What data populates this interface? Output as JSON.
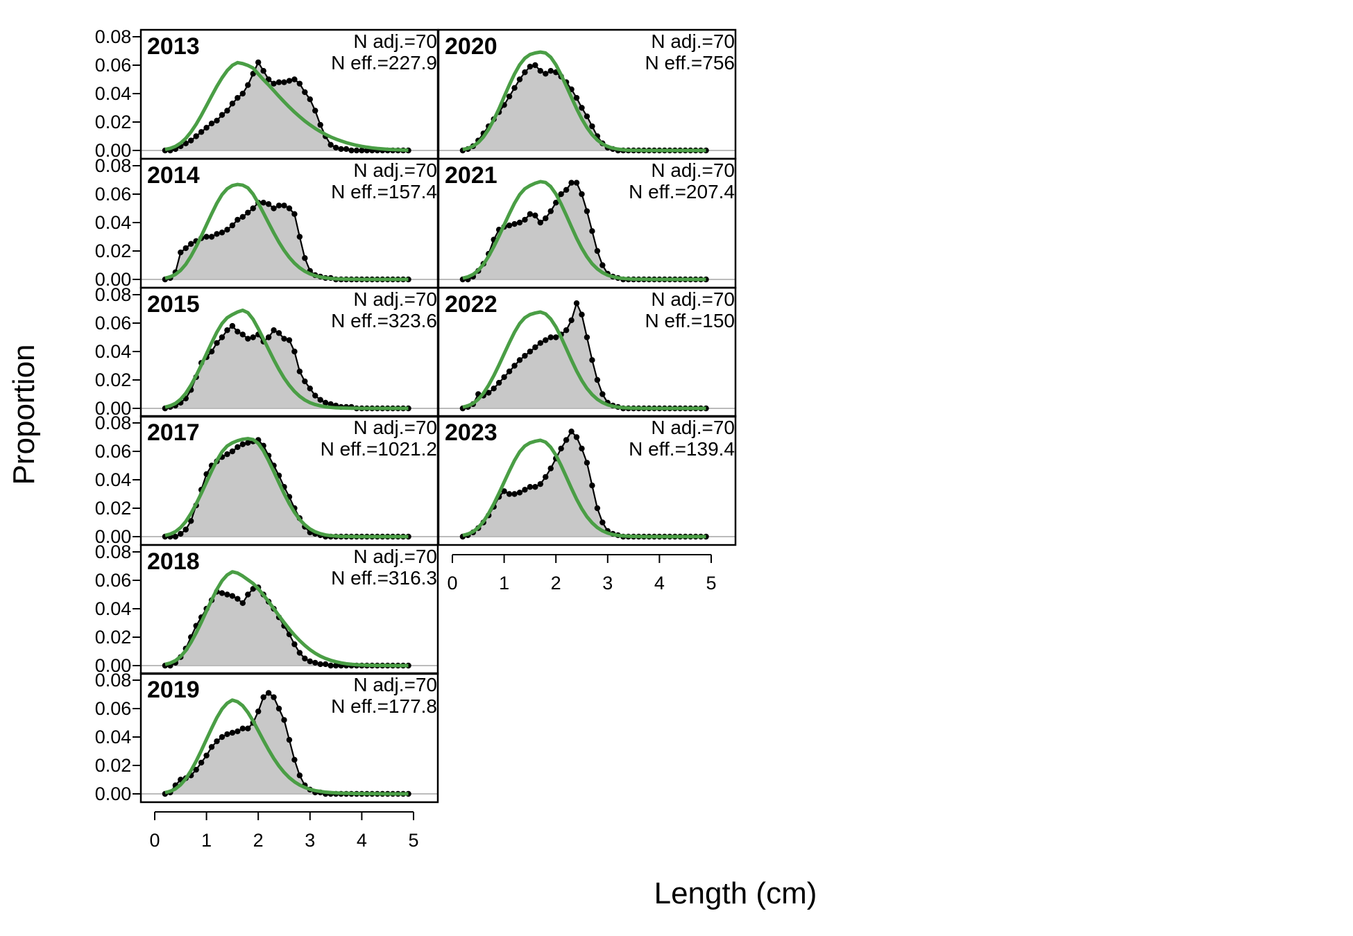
{
  "chart_data": {
    "type": "area",
    "xlabel": "Length (cm)",
    "ylabel": "Proportion",
    "xlim": [
      0,
      5
    ],
    "ylim": [
      0,
      0.08
    ],
    "x_ticks": [
      0,
      1,
      2,
      3,
      4,
      5
    ],
    "y_ticks": [
      "0.00",
      "0.02",
      "0.04",
      "0.06",
      "0.08"
    ],
    "colors": {
      "observed_fill": "#c8c8c8",
      "observed_line": "#000000",
      "expected_line": "#4a9e45",
      "zero_line": "#bbbbbb"
    },
    "x": [
      0.2,
      0.3,
      0.4,
      0.5,
      0.6,
      0.7,
      0.8,
      0.9,
      1.0,
      1.1,
      1.2,
      1.3,
      1.4,
      1.5,
      1.6,
      1.7,
      1.8,
      1.9,
      2.0,
      2.1,
      2.2,
      2.3,
      2.4,
      2.5,
      2.6,
      2.7,
      2.8,
      2.9,
      3.0,
      3.1,
      3.2,
      3.3,
      3.4,
      3.5,
      3.6,
      3.7,
      3.8,
      3.9,
      4.0,
      4.1,
      4.2,
      4.3,
      4.4,
      4.5,
      4.6,
      4.7,
      4.8,
      4.9
    ],
    "panels": [
      {
        "year": "2013",
        "n_adj": "N adj.=70",
        "n_eff": "N eff.=227.9",
        "observed": [
          0,
          0,
          0.001,
          0.003,
          0.005,
          0.007,
          0.01,
          0.013,
          0.016,
          0.019,
          0.021,
          0.025,
          0.028,
          0.033,
          0.037,
          0.04,
          0.046,
          0.054,
          0.062,
          0.056,
          0.05,
          0.047,
          0.048,
          0.048,
          0.049,
          0.05,
          0.047,
          0.041,
          0.036,
          0.028,
          0.018,
          0.01,
          0.004,
          0.002,
          0.001,
          0.001,
          0,
          0,
          0,
          0,
          0,
          0,
          0,
          0,
          0,
          0,
          0,
          0
        ],
        "expected": [
          0.0007,
          0.0015,
          0.0029,
          0.0052,
          0.0085,
          0.013,
          0.0184,
          0.0247,
          0.0315,
          0.0384,
          0.0451,
          0.0511,
          0.0562,
          0.0599,
          0.0618,
          0.0611,
          0.0598,
          0.058,
          0.0538,
          0.0498,
          0.0461,
          0.0421,
          0.0381,
          0.0342,
          0.0305,
          0.027,
          0.0238,
          0.0207,
          0.018,
          0.0155,
          0.0133,
          0.0113,
          0.0095,
          0.008,
          0.0067,
          0.0055,
          0.0045,
          0.0036,
          0.0029,
          0.0023,
          0.0018,
          0.0014,
          0.0011,
          0.0008,
          0.0006,
          0.0005,
          0.0003,
          0.0002
        ]
      },
      {
        "year": "2014",
        "n_adj": "N adj.=70",
        "n_eff": "N eff.=157.4",
        "observed": [
          0,
          0.001,
          0.005,
          0.019,
          0.022,
          0.025,
          0.027,
          0.029,
          0.03,
          0.03,
          0.032,
          0.033,
          0.035,
          0.038,
          0.042,
          0.044,
          0.047,
          0.05,
          0.054,
          0.054,
          0.053,
          0.05,
          0.052,
          0.052,
          0.05,
          0.046,
          0.03,
          0.015,
          0.006,
          0.003,
          0.002,
          0.001,
          0.001,
          0,
          0,
          0,
          0,
          0,
          0,
          0,
          0,
          0,
          0,
          0,
          0,
          0,
          0,
          0
        ],
        "expected": [
          0.0009,
          0.0018,
          0.0035,
          0.0064,
          0.0106,
          0.0163,
          0.023,
          0.0305,
          0.0384,
          0.0462,
          0.0536,
          0.0597,
          0.0638,
          0.066,
          0.0668,
          0.0663,
          0.0644,
          0.06,
          0.0537,
          0.0468,
          0.0397,
          0.0327,
          0.0262,
          0.0204,
          0.0155,
          0.0114,
          0.0082,
          0.0057,
          0.0039,
          0.0026,
          0.0017,
          0.0011,
          0.0007,
          0.0004,
          0.0003,
          0.0002,
          0.0001,
          0.0001,
          0,
          0,
          0,
          0,
          0,
          0,
          0,
          0,
          0,
          0
        ]
      },
      {
        "year": "2015",
        "n_adj": "N adj.=70",
        "n_eff": "N eff.=323.6",
        "observed": [
          0,
          0.001,
          0.002,
          0.004,
          0.007,
          0.013,
          0.022,
          0.032,
          0.036,
          0.04,
          0.046,
          0.05,
          0.055,
          0.058,
          0.054,
          0.052,
          0.049,
          0.05,
          0.052,
          0.047,
          0.05,
          0.055,
          0.053,
          0.049,
          0.048,
          0.04,
          0.026,
          0.019,
          0.014,
          0.009,
          0.006,
          0.004,
          0.003,
          0.002,
          0.001,
          0.001,
          0.001,
          0,
          0,
          0,
          0,
          0,
          0,
          0,
          0,
          0,
          0,
          0
        ],
        "expected": [
          0.0009,
          0.0018,
          0.0035,
          0.0064,
          0.0106,
          0.0163,
          0.023,
          0.0305,
          0.0384,
          0.0462,
          0.0536,
          0.0597,
          0.0638,
          0.066,
          0.0678,
          0.069,
          0.0673,
          0.0627,
          0.0561,
          0.0489,
          0.0415,
          0.0342,
          0.0274,
          0.0213,
          0.0162,
          0.0119,
          0.0085,
          0.0059,
          0.004,
          0.0027,
          0.0018,
          0.0011,
          0.0007,
          0.0004,
          0.0003,
          0.0002,
          0.0001,
          0.0001,
          0,
          0,
          0,
          0,
          0,
          0,
          0,
          0,
          0,
          0
        ]
      },
      {
        "year": "2017",
        "n_adj": "N adj.=70",
        "n_eff": "N eff.=1021.2",
        "observed": [
          0,
          0,
          0,
          0.002,
          0.005,
          0.011,
          0.022,
          0.033,
          0.044,
          0.05,
          0.053,
          0.056,
          0.058,
          0.06,
          0.063,
          0.065,
          0.066,
          0.067,
          0.068,
          0.064,
          0.057,
          0.05,
          0.043,
          0.035,
          0.028,
          0.02,
          0.013,
          0.007,
          0.003,
          0.002,
          0.001,
          0,
          0,
          0,
          0,
          0,
          0,
          0,
          0,
          0,
          0,
          0,
          0,
          0,
          0,
          0,
          0,
          0
        ],
        "expected": [
          0.0009,
          0.0018,
          0.0035,
          0.0064,
          0.0106,
          0.0163,
          0.023,
          0.0305,
          0.0384,
          0.0462,
          0.0536,
          0.0597,
          0.0638,
          0.066,
          0.0675,
          0.0685,
          0.069,
          0.0683,
          0.0656,
          0.0604,
          0.0534,
          0.0458,
          0.0379,
          0.0302,
          0.0232,
          0.0171,
          0.0121,
          0.0083,
          0.0054,
          0.0034,
          0.0021,
          0.0012,
          0.0007,
          0.0004,
          0.0002,
          0.0001,
          0.0001,
          0,
          0,
          0,
          0,
          0,
          0,
          0,
          0,
          0,
          0,
          0
        ]
      },
      {
        "year": "2018",
        "n_adj": "N adj.=70",
        "n_eff": "N eff.=316.3",
        "observed": [
          0,
          0,
          0.002,
          0.006,
          0.012,
          0.02,
          0.028,
          0.034,
          0.04,
          0.046,
          0.052,
          0.051,
          0.05,
          0.049,
          0.047,
          0.044,
          0.05,
          0.054,
          0.055,
          0.05,
          0.045,
          0.04,
          0.034,
          0.028,
          0.022,
          0.015,
          0.009,
          0.005,
          0.003,
          0.002,
          0.001,
          0.001,
          0,
          0,
          0,
          0,
          0,
          0,
          0,
          0,
          0,
          0,
          0,
          0,
          0,
          0,
          0,
          0
        ],
        "expected": [
          0.0009,
          0.0018,
          0.0035,
          0.0064,
          0.0106,
          0.0163,
          0.023,
          0.0305,
          0.0384,
          0.0462,
          0.0536,
          0.0597,
          0.0638,
          0.066,
          0.0651,
          0.063,
          0.0604,
          0.0578,
          0.0541,
          0.0497,
          0.045,
          0.0401,
          0.0351,
          0.0303,
          0.0257,
          0.0214,
          0.0176,
          0.0142,
          0.0112,
          0.0087,
          0.0066,
          0.005,
          0.0037,
          0.0027,
          0.0019,
          0.0013,
          0.0009,
          0.0006,
          0.0004,
          0.0003,
          0.0002,
          0.0001,
          0.0001,
          0.0001,
          0,
          0,
          0,
          0
        ]
      },
      {
        "year": "2019",
        "n_adj": "N adj.=70",
        "n_eff": "N eff.=177.8",
        "observed": [
          0,
          0.001,
          0.006,
          0.01,
          0.011,
          0.013,
          0.017,
          0.022,
          0.027,
          0.033,
          0.037,
          0.04,
          0.042,
          0.043,
          0.044,
          0.046,
          0.046,
          0.05,
          0.058,
          0.068,
          0.071,
          0.068,
          0.06,
          0.052,
          0.038,
          0.024,
          0.013,
          0.006,
          0.003,
          0.001,
          0.001,
          0,
          0,
          0,
          0,
          0,
          0,
          0,
          0,
          0,
          0,
          0,
          0,
          0,
          0,
          0,
          0,
          0
        ],
        "expected": [
          0.0009,
          0.0018,
          0.0035,
          0.0064,
          0.0106,
          0.0163,
          0.023,
          0.0305,
          0.0384,
          0.0462,
          0.0536,
          0.0597,
          0.0638,
          0.066,
          0.0648,
          0.062,
          0.0573,
          0.0513,
          0.0445,
          0.0376,
          0.031,
          0.0249,
          0.0196,
          0.0151,
          0.0114,
          0.0085,
          0.0062,
          0.0045,
          0.0032,
          0.0023,
          0.0017,
          0.0012,
          0.0009,
          0.0007,
          0.0005,
          0.0004,
          0.0003,
          0.0002,
          0.0002,
          0.0001,
          0.0001,
          0.0001,
          0,
          0,
          0,
          0,
          0,
          0
        ]
      },
      {
        "year": "2020",
        "n_adj": "N adj.=70",
        "n_eff": "N eff.=756",
        "observed": [
          0,
          0.001,
          0.003,
          0.007,
          0.012,
          0.017,
          0.022,
          0.027,
          0.032,
          0.038,
          0.044,
          0.05,
          0.055,
          0.059,
          0.06,
          0.056,
          0.054,
          0.056,
          0.055,
          0.052,
          0.048,
          0.043,
          0.037,
          0.03,
          0.024,
          0.017,
          0.01,
          0.005,
          0.002,
          0.001,
          0,
          0,
          0,
          0,
          0,
          0,
          0,
          0,
          0,
          0,
          0,
          0,
          0,
          0,
          0,
          0,
          0,
          0
        ],
        "expected": [
          0.0007,
          0.0015,
          0.003,
          0.0056,
          0.0095,
          0.0149,
          0.0216,
          0.0293,
          0.0378,
          0.0461,
          0.0538,
          0.0603,
          0.0649,
          0.0675,
          0.0686,
          0.0692,
          0.0686,
          0.0656,
          0.0603,
          0.0533,
          0.0454,
          0.0373,
          0.0294,
          0.0222,
          0.0161,
          0.0111,
          0.0073,
          0.0046,
          0.0028,
          0.0016,
          0.0009,
          0.0005,
          0.0002,
          0.0001,
          0.0001,
          0,
          0,
          0,
          0,
          0,
          0,
          0,
          0,
          0,
          0,
          0,
          0,
          0
        ]
      },
      {
        "year": "2021",
        "n_adj": "N adj.=70",
        "n_eff": "N eff.=207.4",
        "observed": [
          0,
          0,
          0.002,
          0.006,
          0.011,
          0.018,
          0.028,
          0.035,
          0.037,
          0.038,
          0.039,
          0.04,
          0.042,
          0.046,
          0.045,
          0.04,
          0.043,
          0.048,
          0.054,
          0.06,
          0.063,
          0.068,
          0.068,
          0.06,
          0.048,
          0.034,
          0.02,
          0.01,
          0.004,
          0.002,
          0.001,
          0,
          0,
          0,
          0,
          0,
          0,
          0,
          0,
          0,
          0,
          0,
          0,
          0,
          0,
          0,
          0,
          0
        ],
        "expected": [
          0.0009,
          0.0018,
          0.0035,
          0.0064,
          0.0106,
          0.0163,
          0.023,
          0.0305,
          0.0384,
          0.0462,
          0.0536,
          0.0597,
          0.0638,
          0.066,
          0.0677,
          0.0688,
          0.0682,
          0.0653,
          0.0601,
          0.0531,
          0.0452,
          0.037,
          0.029,
          0.0219,
          0.0159,
          0.011,
          0.0074,
          0.0048,
          0.003,
          0.0019,
          0.0011,
          0.0007,
          0.0004,
          0.0002,
          0.0001,
          0.0001,
          0,
          0,
          0,
          0,
          0,
          0,
          0,
          0,
          0,
          0,
          0,
          0
        ]
      },
      {
        "year": "2022",
        "n_adj": "N adj.=70",
        "n_eff": "N eff.=150",
        "observed": [
          0,
          0.001,
          0.003,
          0.01,
          0.009,
          0.011,
          0.014,
          0.018,
          0.022,
          0.026,
          0.03,
          0.034,
          0.037,
          0.04,
          0.043,
          0.046,
          0.048,
          0.05,
          0.05,
          0.052,
          0.055,
          0.062,
          0.074,
          0.066,
          0.05,
          0.034,
          0.02,
          0.01,
          0.004,
          0.002,
          0.001,
          0,
          0,
          0,
          0,
          0,
          0,
          0,
          0,
          0,
          0,
          0,
          0,
          0,
          0,
          0,
          0,
          0
        ],
        "expected": [
          0.0009,
          0.0018,
          0.0035,
          0.0064,
          0.0106,
          0.0163,
          0.023,
          0.0305,
          0.0384,
          0.0462,
          0.0536,
          0.0597,
          0.0638,
          0.066,
          0.0671,
          0.0678,
          0.0665,
          0.0629,
          0.0573,
          0.0501,
          0.0421,
          0.034,
          0.0263,
          0.0196,
          0.014,
          0.0097,
          0.0064,
          0.0041,
          0.0025,
          0.0015,
          0.0009,
          0.0005,
          0.0003,
          0.0001,
          0.0001,
          0,
          0,
          0,
          0,
          0,
          0,
          0,
          0,
          0,
          0,
          0,
          0,
          0
        ]
      },
      {
        "year": "2023",
        "n_adj": "N adj.=70",
        "n_eff": "N eff.=139.4",
        "observed": [
          0,
          0.001,
          0.003,
          0.006,
          0.01,
          0.015,
          0.021,
          0.028,
          0.032,
          0.03,
          0.03,
          0.031,
          0.033,
          0.035,
          0.035,
          0.037,
          0.042,
          0.048,
          0.055,
          0.062,
          0.068,
          0.074,
          0.07,
          0.062,
          0.052,
          0.036,
          0.02,
          0.01,
          0.004,
          0.002,
          0.001,
          0,
          0,
          0,
          0,
          0,
          0,
          0,
          0,
          0,
          0,
          0,
          0,
          0,
          0,
          0,
          0,
          0
        ],
        "expected": [
          0.0009,
          0.0018,
          0.0035,
          0.0064,
          0.0106,
          0.0163,
          0.023,
          0.0305,
          0.0384,
          0.0462,
          0.0536,
          0.0597,
          0.0638,
          0.066,
          0.0671,
          0.0678,
          0.0665,
          0.0629,
          0.0573,
          0.0501,
          0.0421,
          0.034,
          0.0263,
          0.0196,
          0.014,
          0.0097,
          0.0064,
          0.0041,
          0.0025,
          0.0015,
          0.0009,
          0.0005,
          0.0003,
          0.0001,
          0.0001,
          0,
          0,
          0,
          0,
          0,
          0,
          0,
          0,
          0,
          0,
          0,
          0,
          0
        ]
      }
    ]
  }
}
